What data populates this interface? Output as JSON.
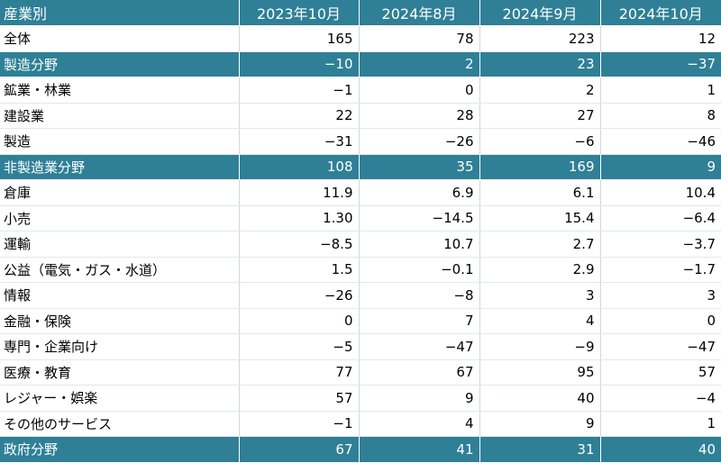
{
  "table": {
    "headers": [
      "産業別",
      "2023年10月",
      "2024年8月",
      "2024年9月",
      "2024年10月"
    ],
    "rows": [
      {
        "label": "全体",
        "values": [
          "165",
          "78",
          "223",
          "12"
        ],
        "highlight": false
      },
      {
        "label": "製造分野",
        "values": [
          "−10",
          "2",
          "23",
          "−37"
        ],
        "highlight": true
      },
      {
        "label": "鉱業・林業",
        "values": [
          "−1",
          "0",
          "2",
          "1"
        ],
        "highlight": false
      },
      {
        "label": "建設業",
        "values": [
          "22",
          "28",
          "27",
          "8"
        ],
        "highlight": false
      },
      {
        "label": "製造",
        "values": [
          "−31",
          "−26",
          "−6",
          "−46"
        ],
        "highlight": false
      },
      {
        "label": "非製造業分野",
        "values": [
          "108",
          "35",
          "169",
          "9"
        ],
        "highlight": true
      },
      {
        "label": "倉庫",
        "values": [
          "11.9",
          "6.9",
          "6.1",
          "10.4"
        ],
        "highlight": false
      },
      {
        "label": "小売",
        "values": [
          "1.30",
          "−14.5",
          "15.4",
          "−6.4"
        ],
        "highlight": false
      },
      {
        "label": "運輸",
        "values": [
          "−8.5",
          "10.7",
          "2.7",
          "−3.7"
        ],
        "highlight": false
      },
      {
        "label": "公益（電気・ガス・水道）",
        "values": [
          "1.5",
          "−0.1",
          "2.9",
          "−1.7"
        ],
        "highlight": false
      },
      {
        "label": "情報",
        "values": [
          "−26",
          "−8",
          "3",
          "3"
        ],
        "highlight": false
      },
      {
        "label": "金融・保険",
        "values": [
          "0",
          "7",
          "4",
          "0"
        ],
        "highlight": false
      },
      {
        "label": "専門・企業向け",
        "values": [
          "−5",
          "−47",
          "−9",
          "−47"
        ],
        "highlight": false
      },
      {
        "label": "医療・教育",
        "values": [
          "77",
          "67",
          "95",
          "57"
        ],
        "highlight": false
      },
      {
        "label": "レジャー・娯楽",
        "values": [
          "57",
          "9",
          "40",
          "−4"
        ],
        "highlight": false
      },
      {
        "label": "その他のサービス",
        "values": [
          "−1",
          "4",
          "9",
          "1"
        ],
        "highlight": false
      },
      {
        "label": "政府分野",
        "values": [
          "67",
          "41",
          "31",
          "40"
        ],
        "highlight": true
      }
    ]
  },
  "colors": {
    "header_bg": "#2f8096",
    "header_text": "#ffffff",
    "body_text": "#000000"
  }
}
